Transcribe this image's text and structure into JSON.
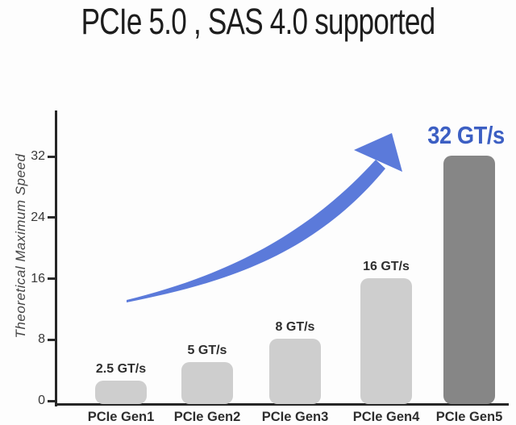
{
  "chart_data": {
    "type": "bar",
    "title": "PCIe 5.0 , SAS 4.0 supported",
    "ylabel": "Theoretical Maximum Speed",
    "xlabel": "",
    "categories": [
      "PCIe Gen1",
      "PCIe Gen2",
      "PCIe Gen3",
      "PCIe Gen4",
      "PCIe Gen5"
    ],
    "values": [
      2.5,
      5,
      8,
      16,
      32
    ],
    "value_labels": [
      "2.5 GT/s",
      "5 GT/s",
      "8 GT/s",
      "16 GT/s",
      "32 GT/s"
    ],
    "yticks": [
      0,
      8,
      16,
      24,
      32
    ],
    "ylim": [
      0,
      38
    ],
    "grid": false,
    "legend": "none",
    "highlight_index": 4,
    "annotation": "upward-curved-growth-arrow",
    "colors": {
      "bar": "#cecece",
      "highlight_bar": "#868686",
      "arrow": "#5b7ada",
      "highlight_text": "#3c5fc3",
      "axis": "#262626",
      "text": "#2e2e2e"
    }
  }
}
